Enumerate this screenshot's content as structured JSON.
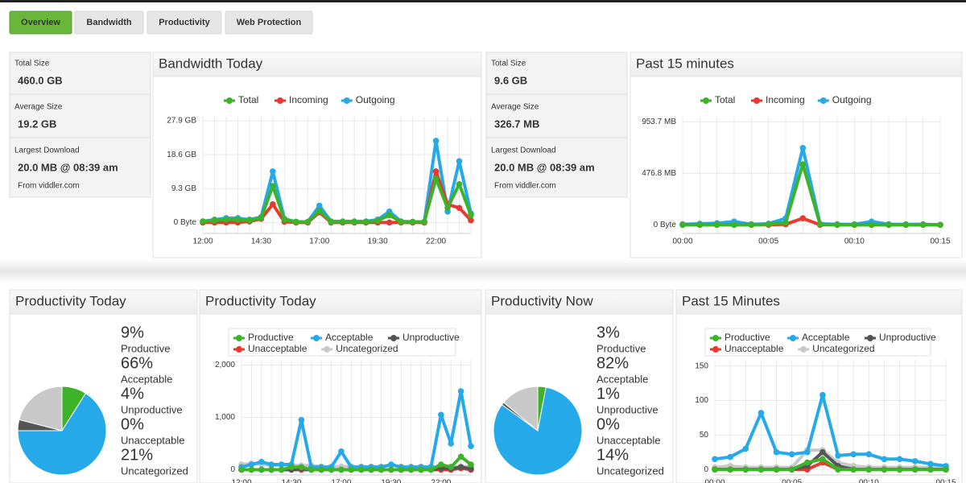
{
  "tabs": [
    "Overview",
    "Bandwidth",
    "Productivity",
    "Web Protection"
  ],
  "daily_stats": [
    {
      "label": "Total Size",
      "value": "460.0 GB"
    },
    {
      "label": "Average Size",
      "value": "19.2 GB"
    },
    {
      "label": "Largest Download",
      "value": "20.0 MB @ 08:39 am",
      "note": "From viddler.com"
    }
  ],
  "recent_stats": [
    {
      "label": "Total Size",
      "value": "9.6 GB"
    },
    {
      "label": "Average Size",
      "value": "326.7 MB"
    },
    {
      "label": "Largest Download",
      "value": "20.0 MB @ 08:39 am",
      "note": "From viddler.com"
    }
  ],
  "chart_data": [
    {
      "type": "line",
      "title": "Bandwidth Today",
      "categories": [
        "12:00",
        null,
        null,
        null,
        null,
        "14:30",
        null,
        null,
        null,
        null,
        "17:00",
        null,
        null,
        null,
        null,
        "19:30",
        null,
        null,
        null,
        null,
        "22:00",
        null,
        null,
        null
      ],
      "series": [
        {
          "name": "Total",
          "color": "#3db32a",
          "values": [
            0.3,
            0.6,
            0.8,
            0.8,
            0.6,
            1.2,
            10,
            0.8,
            0.2,
            0.2,
            3.2,
            0.2,
            0.2,
            0.2,
            0.2,
            0.5,
            2.0,
            0.2,
            0.2,
            0.2,
            12,
            4,
            10.5,
            2
          ]
        },
        {
          "name": "Incoming",
          "color": "#e63a2e",
          "values": [
            0,
            0,
            0,
            0,
            0.3,
            1.0,
            5,
            0.2,
            0,
            0,
            2.8,
            0,
            0,
            0,
            0,
            0,
            0,
            0,
            0,
            0,
            14,
            5,
            4,
            0.6
          ]
        },
        {
          "name": "Outgoing",
          "color": "#25a9e9",
          "values": [
            0.3,
            0.8,
            1.2,
            1.2,
            0.8,
            1.5,
            14,
            1.0,
            0.2,
            0.2,
            4.6,
            0.3,
            0.3,
            0.3,
            0.3,
            0.8,
            3.0,
            0.3,
            0.2,
            0.2,
            22.4,
            3.0,
            16.8,
            2.5
          ]
        }
      ],
      "ylim": [
        -3,
        29
      ],
      "yticks": [
        {
          "value": 0,
          "label": "0 Byte"
        },
        {
          "value": 9.3,
          "label": "9.3 GB"
        },
        {
          "value": 18.6,
          "label": "18.6 GB"
        },
        {
          "value": 27.9,
          "label": "27.9 GB"
        }
      ],
      "grid": true
    },
    {
      "type": "line",
      "title": "Past 15 minutes",
      "categories": [
        "00:00",
        null,
        null,
        null,
        null,
        "00:05",
        null,
        null,
        null,
        null,
        "00:10",
        null,
        null,
        null,
        null,
        "00:15"
      ],
      "series": [
        {
          "name": "Total",
          "color": "#3db32a",
          "values": [
            0,
            0,
            0,
            0,
            0,
            5,
            20,
            560,
            5,
            0,
            0,
            0,
            0,
            0,
            0,
            0
          ]
        },
        {
          "name": "Incoming",
          "color": "#e63a2e",
          "values": [
            0,
            0,
            0,
            0,
            0,
            0,
            5,
            60,
            0,
            0,
            0,
            0,
            0,
            0,
            0,
            0
          ]
        },
        {
          "name": "Outgoing",
          "color": "#25a9e9",
          "values": [
            5,
            10,
            15,
            30,
            5,
            10,
            60,
            711,
            10,
            5,
            5,
            30,
            5,
            5,
            5,
            0
          ]
        }
      ],
      "ylim": [
        -80,
        1000
      ],
      "yticks": [
        {
          "value": 0,
          "label": "0 Byte"
        },
        {
          "value": 476.8,
          "label": "476.8 MB"
        },
        {
          "value": 953.7,
          "label": "953.7 MB"
        }
      ],
      "grid": true
    },
    {
      "type": "pie",
      "title": "Productivity Today",
      "categories": [
        "Productive",
        "Acceptable",
        "Unproductive",
        "Unacceptable",
        "Uncategorized"
      ],
      "values": [
        9,
        66,
        4,
        0,
        21
      ],
      "value_labels": [
        "9%",
        "66%",
        "4%",
        "0%",
        "21%"
      ],
      "colors": [
        "#3db32a",
        "#25a9e9",
        "#555555",
        "#e63a2e",
        "#c8c8c8"
      ]
    },
    {
      "type": "line",
      "title": "Productivity Today",
      "categories": [
        "12:00",
        null,
        null,
        null,
        null,
        "14:30",
        null,
        null,
        null,
        null,
        "17:00",
        null,
        null,
        null,
        null,
        "19:30",
        null,
        null,
        null,
        null,
        "22:00",
        null,
        null,
        null
      ],
      "series": [
        {
          "name": "Productive",
          "color": "#3db32a",
          "values": [
            0,
            0,
            0,
            0,
            0,
            50,
            50,
            0,
            0,
            0,
            0,
            0,
            0,
            0,
            0,
            0,
            0,
            0,
            0,
            0,
            100,
            50,
            250,
            100
          ]
        },
        {
          "name": "Acceptable",
          "color": "#25a9e9",
          "values": [
            50,
            100,
            150,
            100,
            100,
            100,
            950,
            50,
            50,
            50,
            350,
            50,
            50,
            50,
            50,
            100,
            50,
            50,
            50,
            50,
            1050,
            500,
            1500,
            450
          ]
        },
        {
          "name": "Unproductive",
          "color": "#555555",
          "values": [
            0,
            0,
            0,
            0,
            0,
            0,
            20,
            0,
            0,
            0,
            0,
            0,
            0,
            0,
            0,
            0,
            0,
            0,
            0,
            0,
            30,
            20,
            50,
            20
          ]
        },
        {
          "name": "Unacceptable",
          "color": "#e63a2e",
          "values": [
            0,
            0,
            0,
            0,
            0,
            0,
            0,
            0,
            0,
            0,
            0,
            0,
            0,
            0,
            0,
            0,
            0,
            0,
            0,
            0,
            0,
            0,
            30,
            0
          ]
        },
        {
          "name": "Uncategorized",
          "color": "#c8c8c8",
          "values": [
            100,
            120,
            100,
            80,
            90,
            80,
            80,
            80,
            60,
            60,
            60,
            60,
            60,
            60,
            60,
            80,
            60,
            60,
            60,
            60,
            60,
            60,
            60,
            60
          ]
        }
      ],
      "ylim": [
        -100,
        2100
      ],
      "yticks": [
        0,
        {
          "value": 1000,
          "label": "1,000"
        },
        {
          "value": 2000,
          "label": "2,000"
        }
      ],
      "grid": true
    },
    {
      "type": "pie",
      "title": "Productivity Now",
      "categories": [
        "Productive",
        "Acceptable",
        "Unproductive",
        "Unacceptable",
        "Uncategorized"
      ],
      "values": [
        3,
        82,
        1,
        0,
        14
      ],
      "value_labels": [
        "3%",
        "82%",
        "1%",
        "0%",
        "14%"
      ],
      "colors": [
        "#3db32a",
        "#25a9e9",
        "#555555",
        "#e63a2e",
        "#c8c8c8"
      ]
    },
    {
      "type": "line",
      "title": "Past 15 Minutes",
      "categories": [
        "00:00",
        null,
        null,
        null,
        null,
        "00:05",
        null,
        null,
        null,
        null,
        "00:10",
        null,
        null,
        null,
        null,
        "00:15"
      ],
      "series": [
        {
          "name": "Productive",
          "color": "#3db32a",
          "values": [
            0,
            0,
            0,
            0,
            0,
            0,
            10,
            15,
            0,
            0,
            0,
            0,
            0,
            0,
            0,
            0
          ]
        },
        {
          "name": "Acceptable",
          "color": "#25a9e9",
          "values": [
            15,
            18,
            30,
            82,
            25,
            22,
            25,
            108,
            20,
            22,
            22,
            15,
            15,
            12,
            8,
            5
          ]
        },
        {
          "name": "Unproductive",
          "color": "#555555",
          "values": [
            0,
            0,
            0,
            0,
            0,
            0,
            5,
            25,
            5,
            0,
            0,
            0,
            0,
            0,
            0,
            0
          ]
        },
        {
          "name": "Unacceptable",
          "color": "#e63a2e",
          "values": [
            0,
            0,
            0,
            0,
            0,
            0,
            0,
            10,
            0,
            0,
            0,
            0,
            0,
            0,
            0,
            0
          ]
        },
        {
          "name": "Uncategorized",
          "color": "#c8c8c8",
          "values": [
            3,
            5,
            3,
            3,
            3,
            3,
            28,
            28,
            10,
            5,
            3,
            3,
            3,
            3,
            3,
            3
          ]
        }
      ],
      "ylim": [
        -8,
        159
      ],
      "yticks": [
        0,
        50,
        100,
        150
      ],
      "grid": true
    }
  ]
}
